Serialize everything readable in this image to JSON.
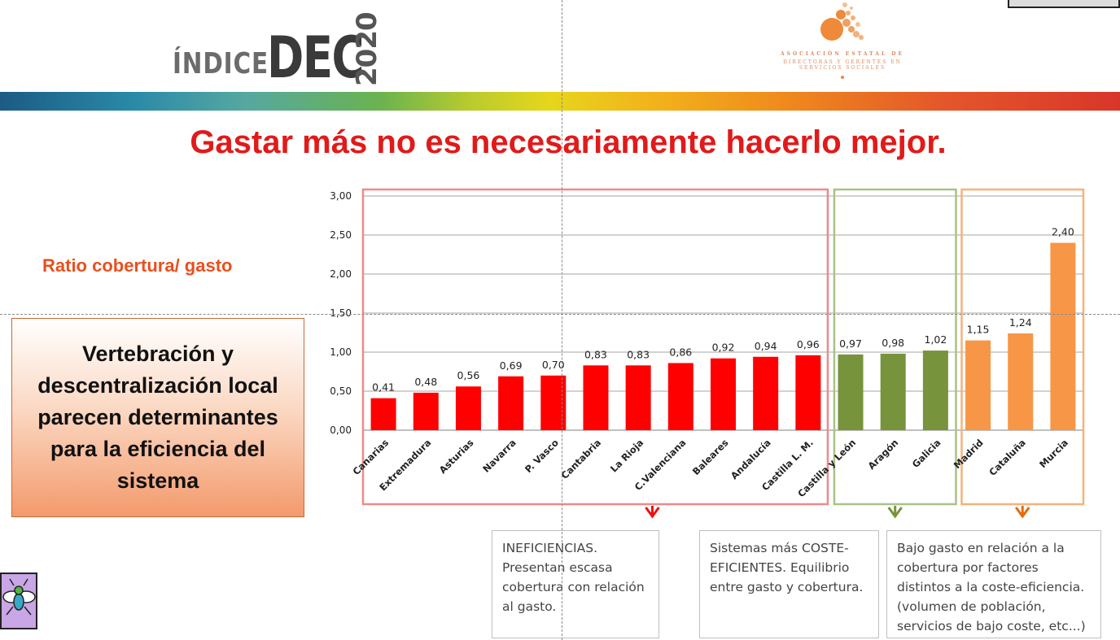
{
  "header": {
    "logo_indice": "ÍNDICE",
    "logo_dec": "DEC",
    "logo_year": "2020",
    "assoc_line1": "ASOCIACIÓN ESTATAL DE",
    "assoc_line2": "DIRECTORAS Y GERENTES EN",
    "assoc_line3": "SERVICIOS SOCIALES"
  },
  "title": "Gastar más no es necesariamente hacerlo mejor.",
  "ratio_label": "Ratio cobertura/ gasto",
  "callout": "Vertebración y descentralización local parecen determinantes para la eficiencia del sistema",
  "notes": {
    "red": "INEFICIENCIAS. Presentan escasa cobertura con relación al gasto.",
    "green": "Sistemas más COSTE-EFICIENTES. Equilibrio entre gasto y cobertura.",
    "orange": "Bajo gasto en relación a la cobertura por factores distintos a la coste-eficiencia. (volumen de población, servicios de bajo coste, etc...)"
  },
  "colors": {
    "red": "#ff0000",
    "green": "#77933c",
    "orange": "#f79646",
    "title": "#e11a1a"
  },
  "chart_data": {
    "type": "bar",
    "title": "",
    "xlabel": "",
    "ylabel": "Ratio cobertura/ gasto",
    "ylim": [
      0,
      3
    ],
    "yticks": [
      "0,00",
      "0,50",
      "1,00",
      "1,50",
      "2,00",
      "2,50",
      "3,00"
    ],
    "grid": true,
    "categories": [
      "Canarias",
      "Extremadura",
      "Asturias",
      "Navarra",
      "P. Vasco",
      "Cantabria",
      "La Rioja",
      "C.Valenciana",
      "Baleares",
      "Andalucía",
      "Castilla L. M.",
      "Castilla y León",
      "Aragón",
      "Galicia",
      "Madrid",
      "Cataluña",
      "Murcia"
    ],
    "values": [
      0.41,
      0.48,
      0.56,
      0.69,
      0.7,
      0.83,
      0.83,
      0.86,
      0.92,
      0.94,
      0.96,
      0.97,
      0.98,
      1.02,
      1.15,
      1.24,
      2.4
    ],
    "labels": [
      "0,41",
      "0,48",
      "0,56",
      "0,69",
      "0,70",
      "0,83",
      "0,83",
      "0,86",
      "0,92",
      "0,94",
      "0,96",
      "0,97",
      "0,98",
      "1,02",
      "1,15",
      "1,24",
      "2,40"
    ],
    "groups": [
      "red",
      "red",
      "red",
      "red",
      "red",
      "red",
      "red",
      "red",
      "red",
      "red",
      "red",
      "green",
      "green",
      "green",
      "orange",
      "orange",
      "orange"
    ]
  }
}
